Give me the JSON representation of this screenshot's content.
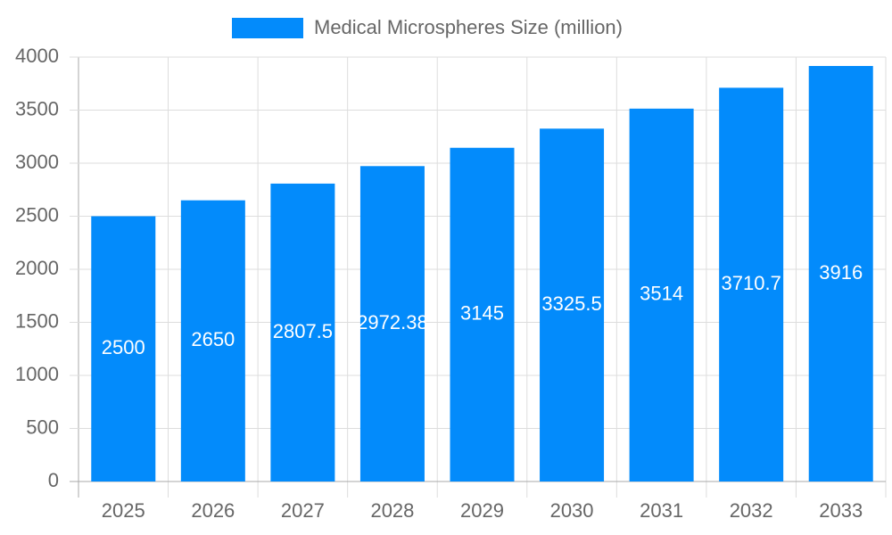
{
  "chart_data": {
    "type": "bar",
    "categories": [
      "2025",
      "2026",
      "2027",
      "2028",
      "2029",
      "2030",
      "2031",
      "2032",
      "2033"
    ],
    "series": [
      {
        "name": "Medical Microspheres Size (million)",
        "color": "#038bfb",
        "values": [
          2500,
          2650,
          2807.5,
          2972.38,
          3145,
          3325.5,
          3514,
          3710.7,
          3916
        ]
      }
    ],
    "ylim": [
      0,
      4000
    ],
    "yticks": [
      0,
      500,
      1000,
      1500,
      2000,
      2500,
      3000,
      3500,
      4000
    ],
    "grid": true,
    "legend": "top",
    "data_labels": true
  }
}
